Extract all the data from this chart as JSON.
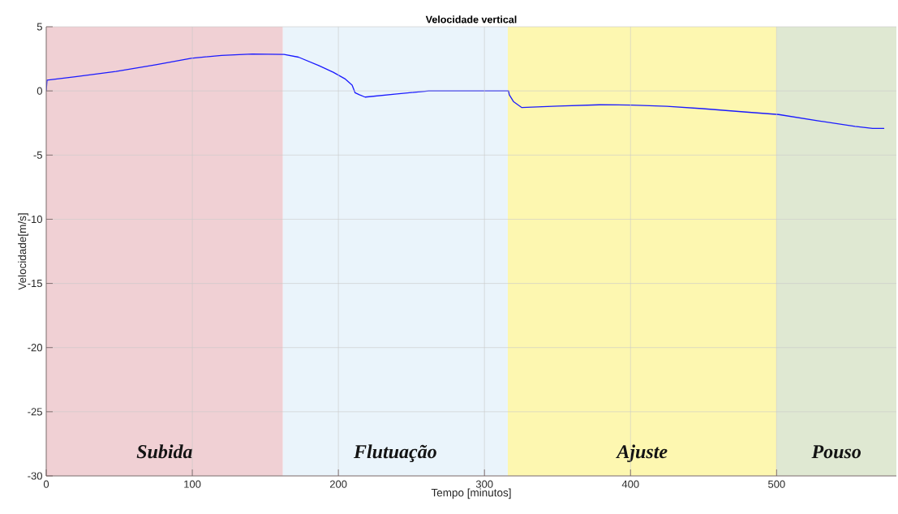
{
  "chart_data": {
    "type": "line",
    "title": "Velocidade vertical",
    "xlabel": "Tempo [minutos]",
    "ylabel": "Velocidade[m/s]",
    "x": [
      0,
      0.5,
      20,
      47.7,
      75,
      99.3,
      120,
      141,
      162.8,
      172.7,
      186.6,
      196.5,
      204.4,
      209.4,
      211.4,
      214.4,
      218.3,
      240,
      262,
      316.5,
      317,
      320,
      325.6,
      350,
      378.8,
      400.9,
      425,
      449.2,
      479.3,
      501.4,
      529.6,
      553.7,
      565.7,
      573.7
    ],
    "series": [
      {
        "color": "#1a1aff",
        "line_style": "solid",
        "values": [
          0,
          0.84,
          1.1,
          1.52,
          2.04,
          2.54,
          2.77,
          2.88,
          2.84,
          2.63,
          1.97,
          1.45,
          0.95,
          0.45,
          -0.14,
          -0.3,
          -0.48,
          -0.24,
          0,
          0,
          -0.3,
          -0.85,
          -1.3,
          -1.18,
          -1.08,
          -1.1,
          -1.2,
          -1.38,
          -1.65,
          -1.84,
          -2.35,
          -2.76,
          -2.92,
          -2.92
        ]
      }
    ],
    "xlim": [
      0,
      582
    ],
    "ylim": [
      -30,
      5
    ],
    "xticks": [
      0,
      100,
      200,
      300,
      400,
      500
    ],
    "yticks": [
      -30,
      -25,
      -20,
      -15,
      -10,
      -5,
      0,
      5
    ],
    "grid": true,
    "bands": [
      {
        "axis": "x",
        "from": 0,
        "to": 162,
        "label": "Subida",
        "color": "#f0d0d4"
      },
      {
        "axis": "x",
        "from": 162,
        "to": 316,
        "label": "Flutuação",
        "color": "#eaf4fb"
      },
      {
        "axis": "x",
        "from": 316,
        "to": 500,
        "label": "Ajuste",
        "color": "#fdf7b0"
      },
      {
        "axis": "x",
        "from": 500,
        "to": 582,
        "label": "Pouso",
        "color": "#dfe8d2"
      }
    ]
  }
}
